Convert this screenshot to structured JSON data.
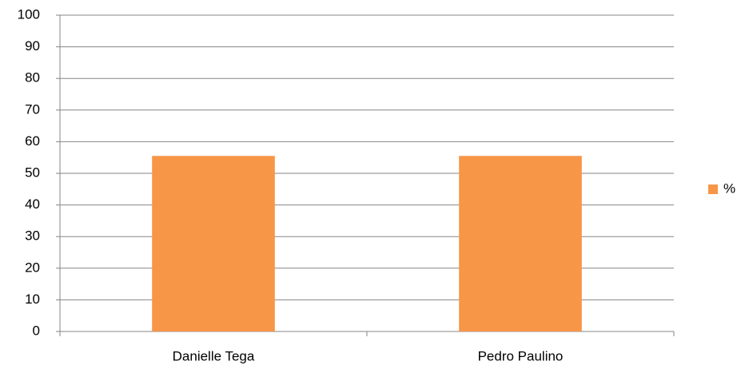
{
  "chart_data": {
    "type": "bar",
    "categories": [
      "Danielle Tega",
      "Pedro Paulino"
    ],
    "series": [
      {
        "name": "%",
        "color": "#f79646",
        "values": [
          55.5,
          55.5
        ]
      }
    ],
    "ylim": [
      0,
      100
    ],
    "yticks": [
      0,
      10,
      20,
      30,
      40,
      50,
      60,
      70,
      80,
      90,
      100
    ],
    "grid": true,
    "legend": "right"
  }
}
